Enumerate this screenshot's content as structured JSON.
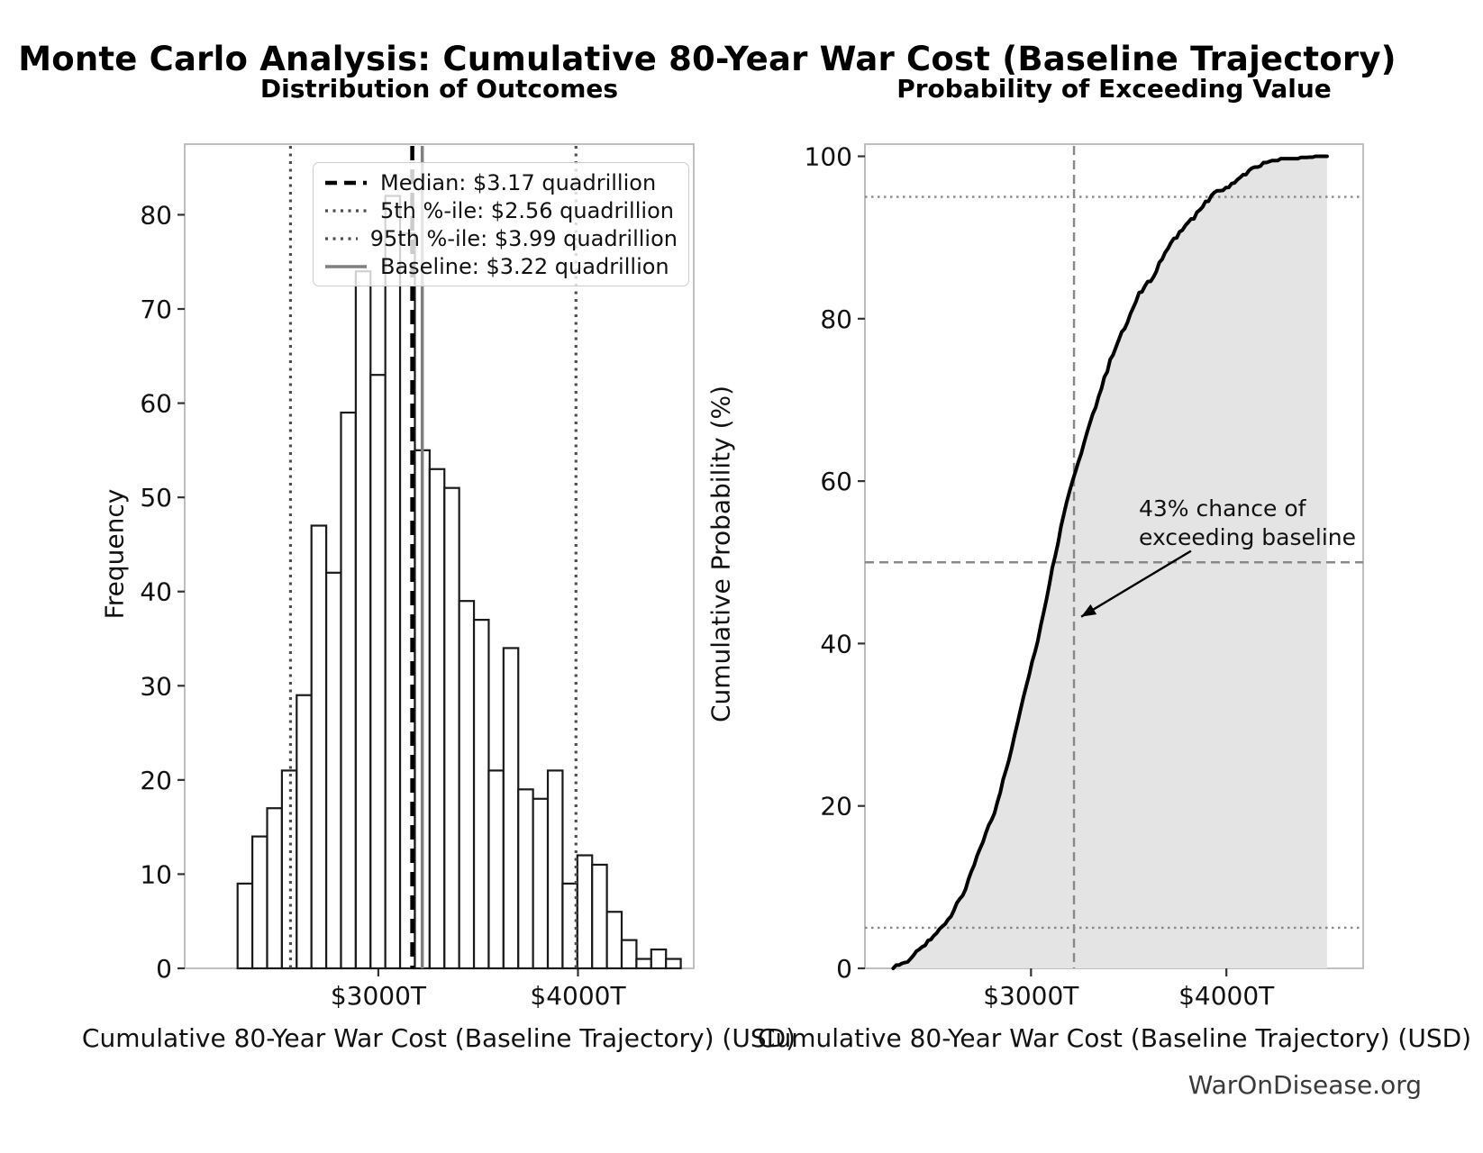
{
  "page": {
    "title_main": "Monte Carlo Analysis: Cumulative 80-Year War Cost (Baseline Trajectory)",
    "footer": "WarOnDisease.org"
  },
  "colors": {
    "background": "#ffffff",
    "bar_fill": "#ffffff",
    "bar_edge": "#1a1a1a",
    "median_line": "#000000",
    "percentile_line": "#4d4d4d",
    "baseline_line": "#7f7f7f",
    "cdf_curve": "#000000",
    "cdf_fill": "#e4e4e4",
    "guide_gray": "#888888",
    "spine": "#b8b8b8",
    "tick": "#333333",
    "text": "#111111",
    "footer_text": "#3a3a3a"
  },
  "chart_data": [
    {
      "type": "bar",
      "subtype": "histogram",
      "title": "Distribution of Outcomes",
      "xlabel": "Cumulative 80-Year War Cost (Baseline Trajectory) (USD)",
      "ylabel": "Frequency",
      "bin_start": 2295,
      "bin_width": 74,
      "x_unit": "trillions of USD",
      "values": [
        9,
        14,
        17,
        21,
        29,
        47,
        42,
        59,
        74,
        63,
        82,
        78,
        55,
        53,
        51,
        39,
        37,
        21,
        34,
        19,
        18,
        21,
        9,
        12,
        11,
        6,
        3,
        1,
        2,
        1
      ],
      "xlim": [
        2030,
        4580
      ],
      "ylim": [
        0,
        87.5
      ],
      "xticks": [
        {
          "value": 3000,
          "label": "$3000T"
        },
        {
          "value": 4000,
          "label": "$4000T"
        }
      ],
      "yticks": [
        0,
        10,
        20,
        30,
        40,
        50,
        60,
        70,
        80
      ],
      "grid": false,
      "legend_position": "upper right (inside axes)",
      "ref_lines": [
        {
          "name": "median",
          "value": 3170,
          "label": "Median: $3.17 quadrillion",
          "style": "dashed",
          "color": "#000000",
          "width": 4.5
        },
        {
          "name": "p5",
          "value": 2560,
          "label": "5th %-ile: $2.56 quadrillion",
          "style": "dotted",
          "color": "#4d4d4d",
          "width": 3.2
        },
        {
          "name": "p95",
          "value": 3990,
          "label": "95th %-ile: $3.99 quadrillion",
          "style": "dotted",
          "color": "#4d4d4d",
          "width": 3.2
        },
        {
          "name": "baseline",
          "value": 3220,
          "label": "Baseline: $3.22 quadrillion",
          "style": "solid",
          "color": "#7f7f7f",
          "width": 3.5
        }
      ]
    },
    {
      "type": "line",
      "subtype": "empirical-cdf",
      "title": "Probability of Exceeding Value",
      "xlabel": "Cumulative 80-Year War Cost (Baseline Trajectory) (USD)",
      "ylabel": "Cumulative Probability (%)",
      "xlim": [
        2150,
        4700
      ],
      "ylim": [
        0,
        101.5
      ],
      "xticks": [
        {
          "value": 3000,
          "label": "$3000T"
        },
        {
          "value": 4000,
          "label": "$4000T"
        }
      ],
      "yticks": [
        0,
        20,
        40,
        60,
        80,
        100
      ],
      "grid": false,
      "edge_start": 2295,
      "edge_step": 74,
      "cdf_percent": [
        0,
        0.97,
        2.48,
        4.31,
        6.57,
        9.7,
        14.76,
        19.29,
        25.65,
        33.62,
        40.41,
        49.25,
        57.65,
        63.58,
        69.29,
        74.78,
        78.99,
        82.97,
        85.24,
        88.9,
        90.95,
        92.89,
        95.15,
        96.12,
        97.41,
        98.6,
        99.25,
        99.57,
        99.68,
        99.89,
        100
      ],
      "hlines": [
        {
          "value": 5,
          "style": "dotted"
        },
        {
          "value": 95,
          "style": "dotted"
        },
        {
          "value": 50,
          "style": "dashed"
        }
      ],
      "vline": {
        "name": "baseline",
        "value": 3220,
        "style": "dashed"
      },
      "annotation": {
        "line1": "43% chance of",
        "line2": "exceeding baseline",
        "arrow_from_data": [
          3819,
          51.4
        ],
        "arrow_to_data": [
          3257,
          43.3
        ]
      }
    }
  ]
}
